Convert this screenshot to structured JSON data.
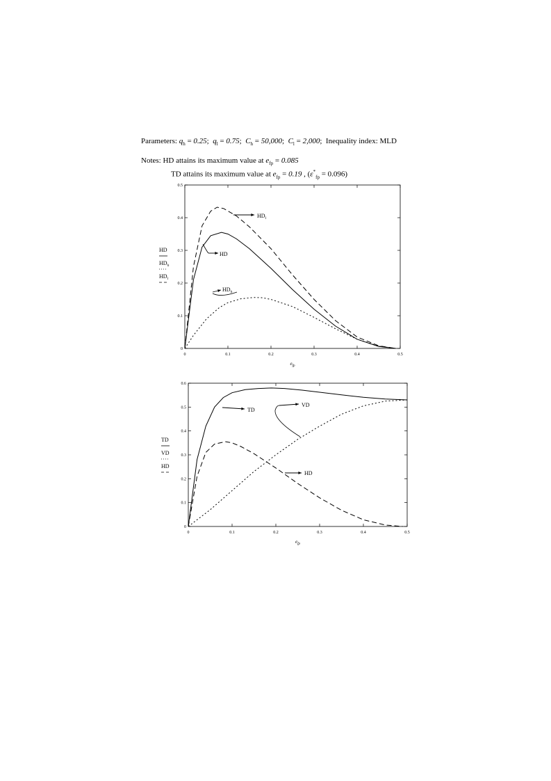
{
  "header": {
    "parameters_label": "Parameters:",
    "q_h_value": "0.25",
    "q_l_value": "0.75",
    "C_h_value": "50,000",
    "C_l_value": "2,000",
    "index_label": "Inequality index: MLD",
    "notes_label": "Notes:",
    "note1_text": "HD attains its maximum value at",
    "note1_value": "0.085",
    "note2_text": "TD attains its maximum value at",
    "note2_value": "0.19",
    "note2_extra_value": "0.096"
  },
  "chart_data": [
    {
      "type": "line",
      "xlabel": "e_fp",
      "ylabel_stack": [
        "HD",
        "HD_h",
        "HD_l"
      ],
      "xlim": [
        0,
        0.5
      ],
      "ylim": [
        0,
        0.5
      ],
      "x_ticks": [
        "0",
        "0.1",
        "0.2",
        "0.3",
        "0.4",
        "0.5"
      ],
      "y_ticks": [
        "0",
        "0.1",
        "0.2",
        "0.3",
        "0.4",
        "0.5"
      ],
      "grid": false,
      "series": [
        {
          "name": "HD_l",
          "style": "dashed",
          "x": [
            0,
            0.02,
            0.04,
            0.06,
            0.075,
            0.09,
            0.12,
            0.15,
            0.2,
            0.25,
            0.3,
            0.35,
            0.4,
            0.45,
            0.49
          ],
          "y": [
            0,
            0.25,
            0.375,
            0.42,
            0.432,
            0.428,
            0.405,
            0.372,
            0.305,
            0.225,
            0.15,
            0.085,
            0.035,
            0.008,
            0
          ]
        },
        {
          "name": "HD",
          "style": "solid",
          "x": [
            0,
            0.02,
            0.04,
            0.06,
            0.085,
            0.1,
            0.12,
            0.15,
            0.2,
            0.25,
            0.3,
            0.35,
            0.4,
            0.45,
            0.49
          ],
          "y": [
            0,
            0.21,
            0.31,
            0.345,
            0.355,
            0.35,
            0.335,
            0.305,
            0.245,
            0.18,
            0.12,
            0.068,
            0.028,
            0.006,
            0
          ]
        },
        {
          "name": "HD_h",
          "style": "dotted",
          "x": [
            0,
            0.02,
            0.05,
            0.08,
            0.1,
            0.13,
            0.16,
            0.18,
            0.2,
            0.25,
            0.3,
            0.35,
            0.4,
            0.45,
            0.49
          ],
          "y": [
            0,
            0.04,
            0.09,
            0.125,
            0.14,
            0.152,
            0.156,
            0.155,
            0.15,
            0.128,
            0.095,
            0.06,
            0.028,
            0.007,
            0
          ]
        }
      ],
      "annotations": [
        "HD_l",
        "HD",
        "HD_h"
      ]
    },
    {
      "type": "line",
      "xlabel": "e_fp",
      "ylabel_stack": [
        "TD",
        "VD",
        "HD"
      ],
      "xlim": [
        0,
        0.5
      ],
      "ylim": [
        0,
        0.6
      ],
      "x_ticks": [
        "0",
        "0.1",
        "0.2",
        "0.3",
        "0.4",
        "0.5"
      ],
      "y_ticks": [
        "0",
        "0.1",
        "0.2",
        "0.3",
        "0.4",
        "0.5",
        "0.6"
      ],
      "grid": false,
      "series": [
        {
          "name": "TD",
          "style": "solid",
          "x": [
            0,
            0.02,
            0.04,
            0.06,
            0.08,
            0.1,
            0.13,
            0.16,
            0.19,
            0.22,
            0.26,
            0.3,
            0.35,
            0.4,
            0.45,
            0.5
          ],
          "y": [
            0,
            0.28,
            0.42,
            0.5,
            0.54,
            0.56,
            0.573,
            0.578,
            0.58,
            0.578,
            0.571,
            0.562,
            0.551,
            0.541,
            0.534,
            0.53
          ]
        },
        {
          "name": "VD",
          "style": "dotted",
          "x": [
            0,
            0.05,
            0.1,
            0.15,
            0.2,
            0.25,
            0.3,
            0.35,
            0.4,
            0.45,
            0.5
          ],
          "y": [
            0,
            0.07,
            0.15,
            0.23,
            0.3,
            0.365,
            0.42,
            0.47,
            0.505,
            0.525,
            0.53
          ]
        },
        {
          "name": "HD",
          "style": "dashed",
          "x": [
            0,
            0.02,
            0.04,
            0.06,
            0.085,
            0.1,
            0.12,
            0.15,
            0.2,
            0.25,
            0.3,
            0.35,
            0.4,
            0.45,
            0.49
          ],
          "y": [
            0,
            0.21,
            0.31,
            0.345,
            0.355,
            0.35,
            0.335,
            0.305,
            0.245,
            0.18,
            0.12,
            0.068,
            0.028,
            0.006,
            0
          ]
        }
      ],
      "annotations": [
        "TD",
        "VD",
        "HD"
      ]
    }
  ]
}
